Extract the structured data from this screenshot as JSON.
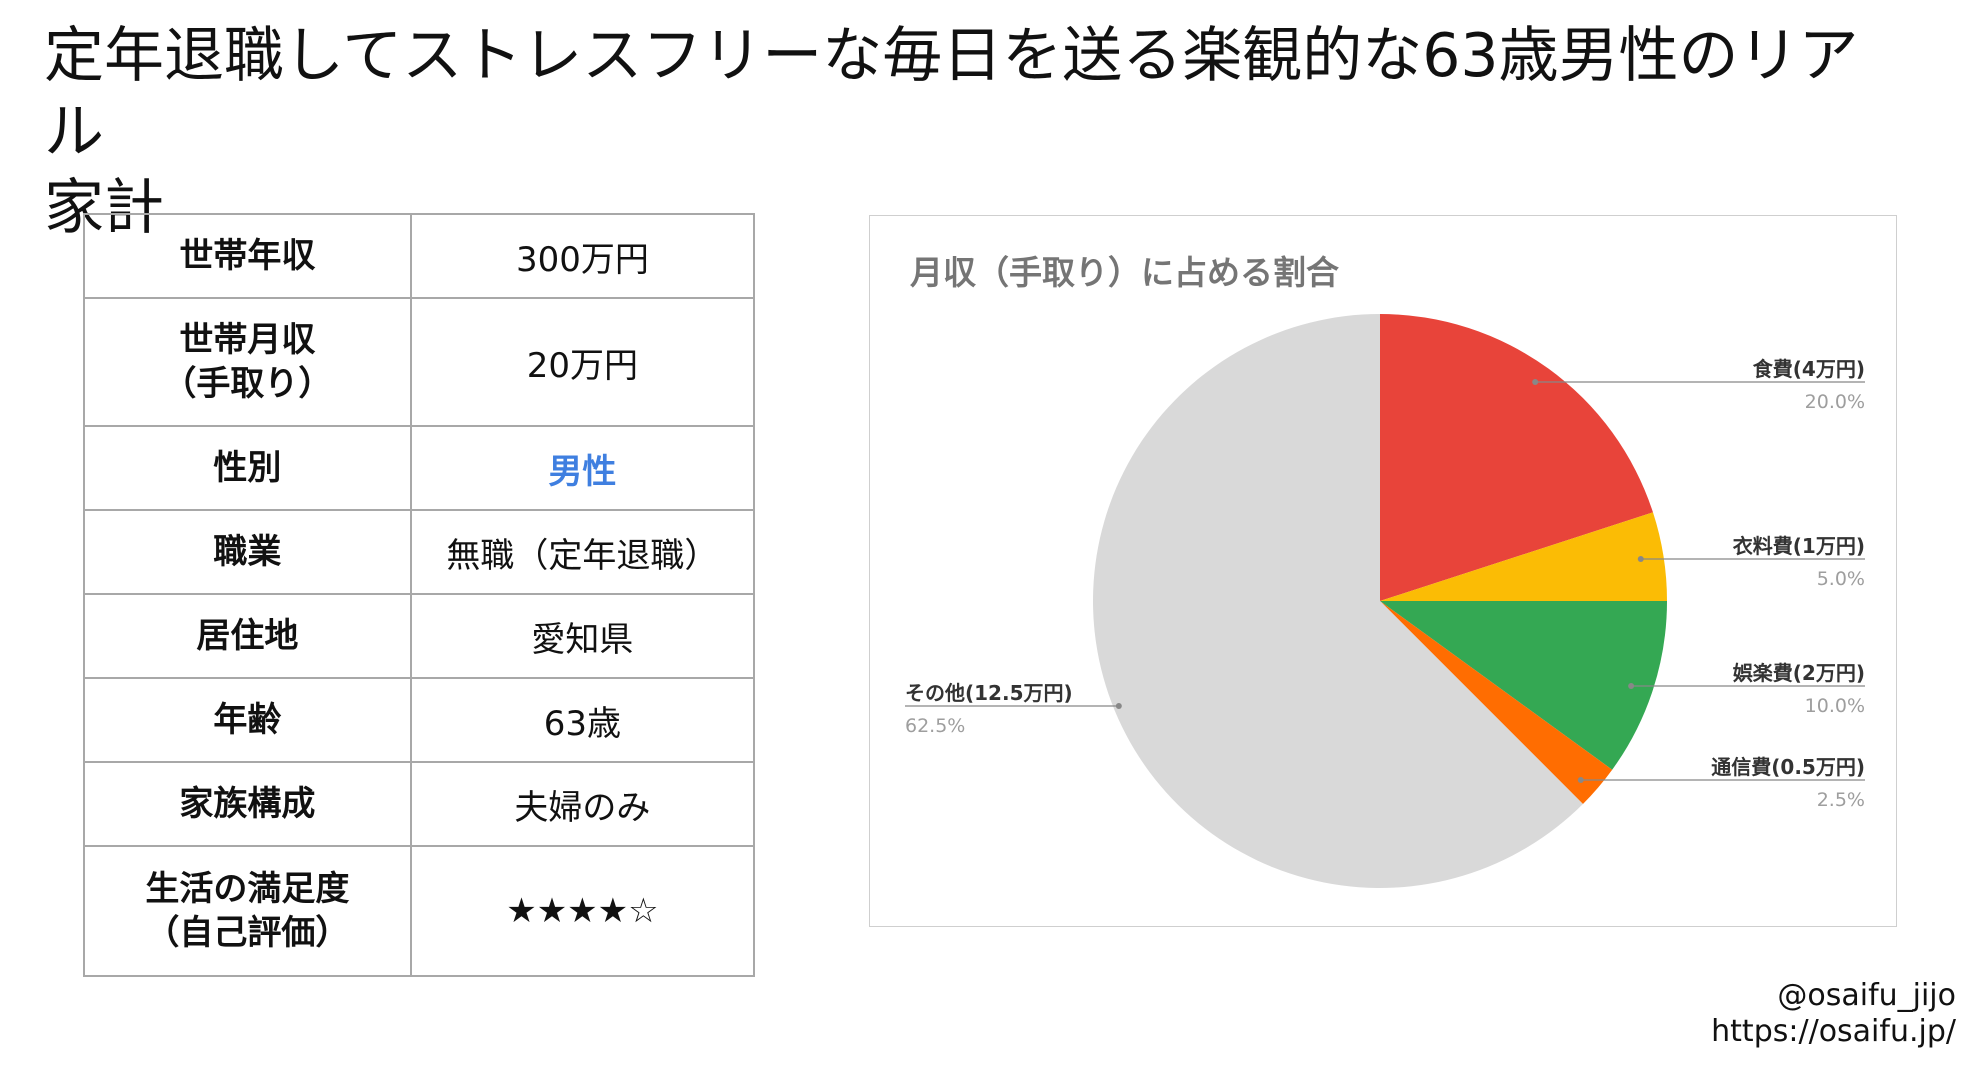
{
  "page": {
    "title": "定年退職してストレスフリーな毎日を送る楽観的な63歳男性のリアル\n家計"
  },
  "profile": {
    "rows": [
      {
        "label": "世帯年収",
        "value": "300万円"
      },
      {
        "label": "世帯月収\n（手取り）",
        "value": "20万円"
      },
      {
        "label": "性別",
        "value": "男性"
      },
      {
        "label": "職業",
        "value": "無職（定年退職）"
      },
      {
        "label": "居住地",
        "value": "愛知県"
      },
      {
        "label": "年齢",
        "value": "63歳"
      },
      {
        "label": "家族構成",
        "value": "夫婦のみ"
      },
      {
        "label": "生活の満足度\n（自己評価）",
        "value": "★★★★☆"
      }
    ]
  },
  "chart_data": {
    "type": "pie",
    "title": "月収（手取り）に占める割合",
    "categories": [
      "食費(4万円)",
      "衣料費(1万円)",
      "娯楽費(2万円)",
      "通信費(0.5万円)",
      "その他(12.5万円)"
    ],
    "values": [
      4,
      1,
      2,
      0.5,
      12.5
    ],
    "percent_labels": [
      "20.0%",
      "5.0%",
      "10.0%",
      "2.5%",
      "62.5%"
    ],
    "colors": [
      "#e8443a",
      "#fbbc05",
      "#34a853",
      "#ff6d01",
      "#d9d9d9"
    ],
    "start": "12 o'clock",
    "direction": "clockwise"
  },
  "credit": {
    "handle": "@osaifu_jijo",
    "url": "https://osaifu.jp/"
  }
}
